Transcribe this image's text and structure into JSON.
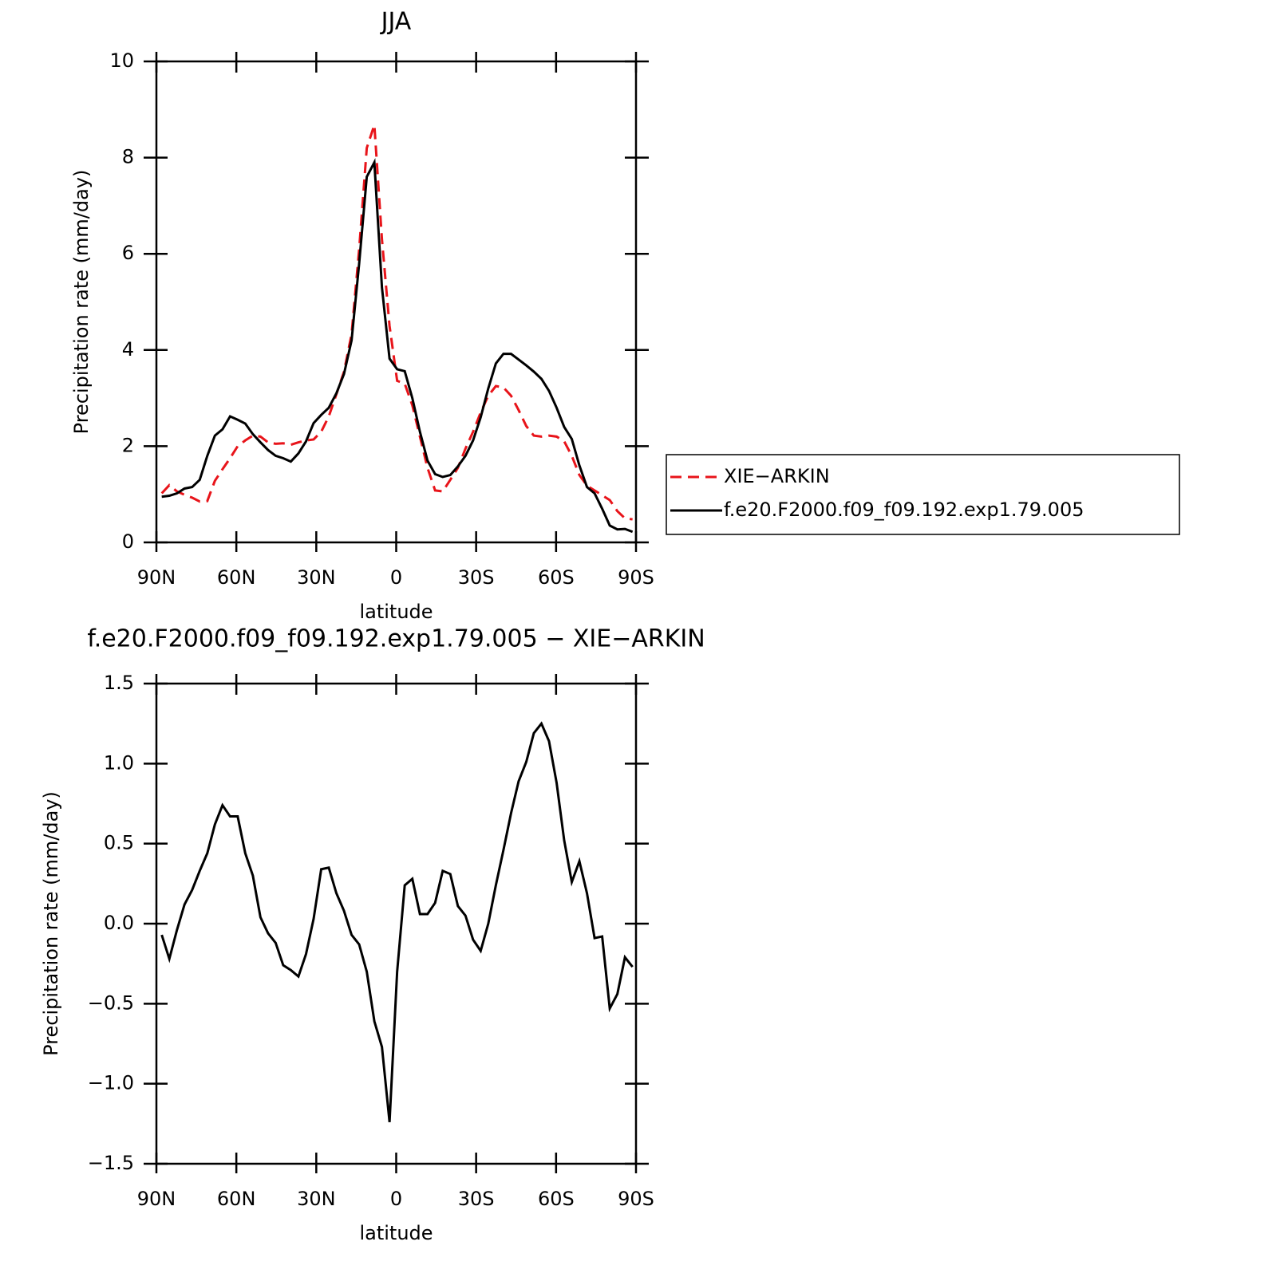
{
  "chart_data": [
    {
      "type": "line",
      "title": "JJA",
      "xlabel": "latitude",
      "ylabel": "Precipitation rate (mm/day)",
      "xlim": [
        90,
        -90
      ],
      "xticks": [
        {
          "value": 90,
          "label": "90N"
        },
        {
          "value": 60,
          "label": "60N"
        },
        {
          "value": 30,
          "label": "30N"
        },
        0,
        {
          "value": -30,
          "label": "30S"
        },
        {
          "value": -60,
          "label": "60S"
        },
        {
          "value": -90,
          "label": "90S"
        }
      ],
      "ylim": [
        0,
        10
      ],
      "yticks": [
        0,
        2,
        4,
        6,
        8,
        10
      ],
      "grid": false,
      "legend": "right",
      "x": [
        88,
        85.15,
        82.3,
        79.45,
        76.6,
        73.75,
        70.9,
        68.05,
        65.2,
        62.35,
        59.5,
        56.65,
        53.8,
        50.95,
        48.1,
        45.25,
        42.4,
        39.55,
        36.7,
        33.85,
        31,
        28.15,
        25.3,
        22.45,
        19.6,
        16.75,
        13.9,
        11.05,
        8.2,
        5.35,
        2.5,
        -0.35,
        -3.2,
        -6.05,
        -8.9,
        -11.75,
        -14.6,
        -17.45,
        -20.3,
        -23.15,
        -26,
        -28.85,
        -31.7,
        -34.55,
        -37.4,
        -40.25,
        -43.1,
        -45.95,
        -48.8,
        -51.65,
        -54.5,
        -57.35,
        -60.2,
        -63.05,
        -65.9,
        -68.75,
        -71.6,
        -74.45,
        -77.3,
        -80.15,
        -83,
        -85.85,
        -88.7
      ],
      "series": [
        {
          "name": "XIE−ARKIN",
          "color": "#e8141a",
          "style": "dashed",
          "values": [
            1.02,
            1.19,
            1.06,
            0.99,
            0.93,
            0.85,
            0.86,
            1.28,
            1.52,
            1.75,
            2.0,
            2.12,
            2.22,
            2.2,
            2.08,
            2.05,
            2.06,
            2.03,
            2.08,
            2.12,
            2.14,
            2.3,
            2.62,
            3.08,
            3.55,
            4.33,
            6.1,
            8.2,
            8.68,
            6.3,
            4.5,
            3.36,
            3.3,
            2.85,
            2.2,
            1.55,
            1.08,
            1.06,
            1.3,
            1.55,
            1.95,
            2.3,
            2.7,
            3.05,
            3.25,
            3.22,
            3.05,
            2.75,
            2.42,
            2.22,
            2.2,
            2.22,
            2.2,
            2.1,
            1.8,
            1.4,
            1.18,
            1.08,
            0.98,
            0.88,
            0.65,
            0.5,
            0.48
          ]
        },
        {
          "name": "f.e20.F2000.f09_f09.192.exp1.79.005",
          "color": "#000000",
          "style": "solid",
          "values": [
            0.95,
            0.97,
            1.02,
            1.12,
            1.15,
            1.3,
            1.8,
            2.22,
            2.35,
            2.62,
            2.55,
            2.47,
            2.25,
            2.08,
            1.92,
            1.8,
            1.75,
            1.68,
            1.85,
            2.1,
            2.48,
            2.65,
            2.8,
            3.1,
            3.5,
            4.2,
            5.8,
            7.6,
            7.9,
            5.3,
            3.82,
            3.6,
            3.56,
            3.0,
            2.3,
            1.7,
            1.42,
            1.36,
            1.4,
            1.58,
            1.8,
            2.12,
            2.6,
            3.2,
            3.72,
            3.92,
            3.92,
            3.8,
            3.68,
            3.55,
            3.4,
            3.15,
            2.8,
            2.4,
            2.15,
            1.6,
            1.15,
            1.02,
            0.7,
            0.35,
            0.27,
            0.28,
            0.22
          ]
        }
      ]
    },
    {
      "type": "line",
      "title": "f.e20.F2000.f09_f09.192.exp1.79.005 − XIE−ARKIN",
      "xlabel": "latitude",
      "ylabel": "Precipitation rate (mm/day)",
      "xlim": [
        90,
        -90
      ],
      "xticks": [
        {
          "value": 90,
          "label": "90N"
        },
        {
          "value": 60,
          "label": "60N"
        },
        {
          "value": 30,
          "label": "30N"
        },
        0,
        {
          "value": -30,
          "label": "30S"
        },
        {
          "value": -60,
          "label": "60S"
        },
        {
          "value": -90,
          "label": "90S"
        }
      ],
      "ylim": [
        -1.5,
        1.5
      ],
      "yticks": [
        {
          "value": -1.5,
          "label": "−1.5"
        },
        {
          "value": -1,
          "label": "−1.0"
        },
        {
          "value": -0.5,
          "label": "−0.5"
        },
        {
          "value": 0,
          "label": "0.0"
        },
        0.5,
        {
          "value": 1,
          "label": "1.0"
        },
        1.5
      ],
      "grid": false,
      "x": [
        88,
        85.15,
        82.3,
        79.45,
        76.6,
        73.75,
        70.9,
        68.05,
        65.2,
        62.35,
        59.5,
        56.65,
        53.8,
        50.95,
        48.1,
        45.25,
        42.4,
        39.55,
        36.7,
        33.85,
        31,
        28.15,
        25.3,
        22.45,
        19.6,
        16.75,
        13.9,
        11.05,
        8.2,
        5.35,
        2.5,
        -0.35,
        -3.2,
        -6.05,
        -8.9,
        -11.75,
        -14.6,
        -17.45,
        -20.3,
        -23.15,
        -26,
        -28.85,
        -31.7,
        -34.55,
        -37.4,
        -40.25,
        -43.1,
        -45.95,
        -48.8,
        -51.65,
        -54.5,
        -57.35,
        -60.2,
        -63.05,
        -65.9,
        -68.75,
        -71.6,
        -74.45,
        -77.3,
        -80.15,
        -83,
        -85.85,
        -88.7
      ],
      "values": [
        -0.07,
        -0.22,
        -0.04,
        0.12,
        0.21,
        0.33,
        0.44,
        0.62,
        0.74,
        0.67,
        0.67,
        0.44,
        0.3,
        0.04,
        -0.06,
        -0.12,
        -0.26,
        -0.29,
        -0.33,
        -0.19,
        0.03,
        0.34,
        0.35,
        0.19,
        0.08,
        -0.07,
        -0.13,
        -0.3,
        -0.61,
        -0.77,
        -1.24,
        -0.3,
        0.24,
        0.28,
        0.06,
        0.06,
        0.13,
        0.33,
        0.31,
        0.11,
        0.05,
        -0.1,
        -0.17,
        0.0,
        0.24,
        0.46,
        0.69,
        0.89,
        1.01,
        1.19,
        1.25,
        1.14,
        0.88,
        0.52,
        0.26,
        0.39,
        0.19,
        -0.09,
        -0.08,
        -0.53,
        -0.44,
        -0.21,
        -0.27
      ],
      "color": "#000000"
    }
  ]
}
